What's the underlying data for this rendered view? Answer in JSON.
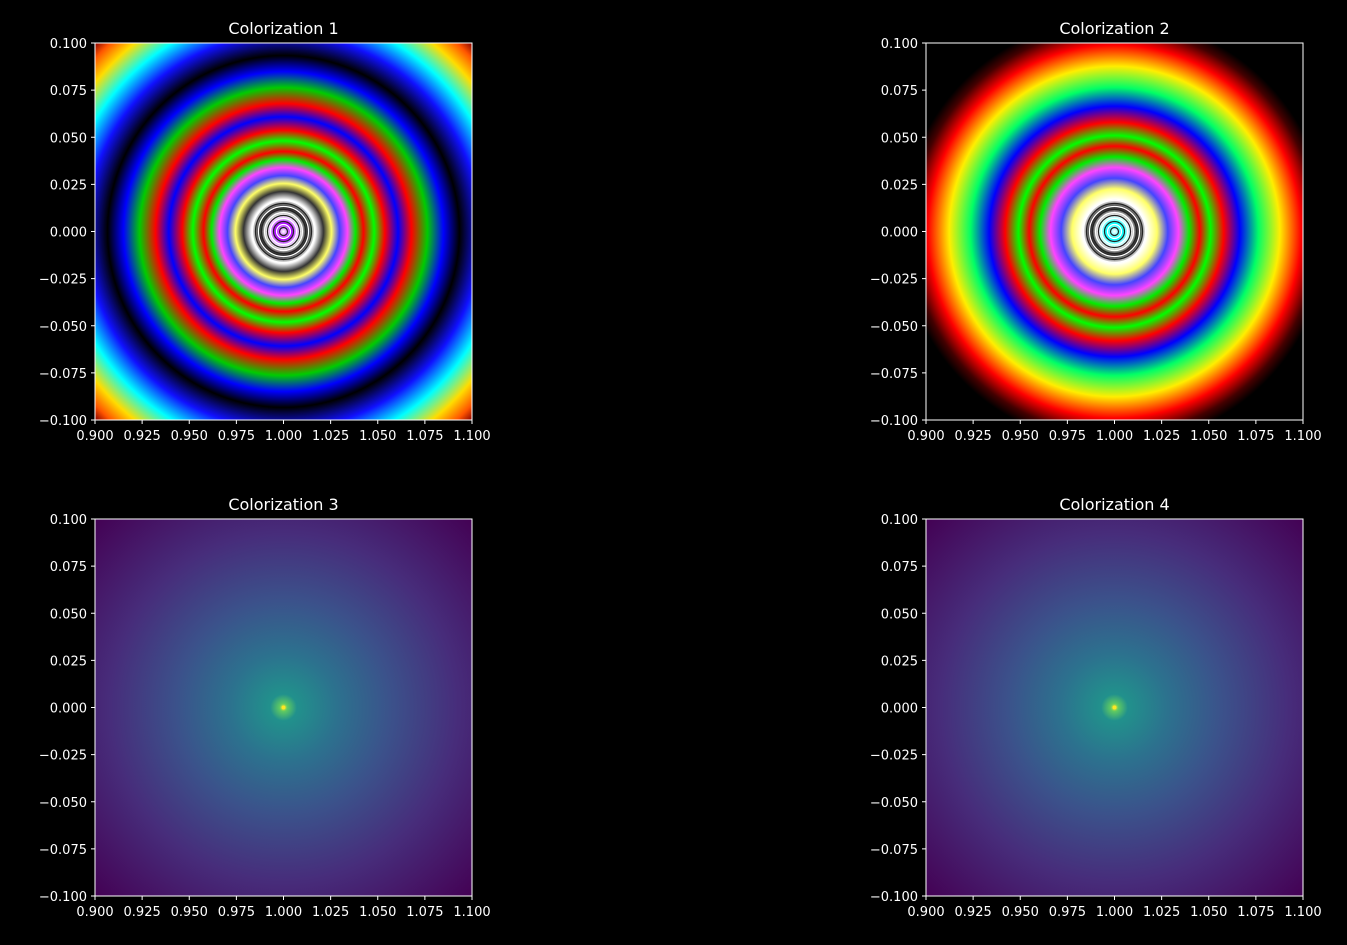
{
  "figure": {
    "background": "#000000",
    "foreground": "#ffffff"
  },
  "chart_data": [
    {
      "type": "heatmap",
      "title": "Colorization 1",
      "colormap": "banded-rainbow",
      "xlim": [
        0.9,
        1.1
      ],
      "ylim": [
        -0.1,
        0.1
      ],
      "x_ticks": [
        "0.900",
        "0.925",
        "0.950",
        "0.975",
        "1.000",
        "1.025",
        "1.050",
        "1.075",
        "1.100"
      ],
      "y_ticks": [
        "0.100",
        "0.075",
        "0.050",
        "0.025",
        "0.000",
        "−0.025",
        "−0.050",
        "−0.075",
        "−0.100"
      ],
      "center": [
        1.0,
        0.0
      ],
      "grid": false
    },
    {
      "type": "heatmap",
      "title": "Colorization 2",
      "colormap": "banded-rainbow-black-background",
      "xlim": [
        0.9,
        1.1
      ],
      "ylim": [
        -0.1,
        0.1
      ],
      "x_ticks": [
        "0.900",
        "0.925",
        "0.950",
        "0.975",
        "1.000",
        "1.025",
        "1.050",
        "1.075",
        "1.100"
      ],
      "y_ticks": [
        "0.100",
        "0.075",
        "0.050",
        "0.025",
        "0.000",
        "−0.025",
        "−0.050",
        "−0.075",
        "−0.100"
      ],
      "center": [
        1.0,
        0.0
      ],
      "grid": false
    },
    {
      "type": "heatmap",
      "title": "Colorization 3",
      "colormap": "viridis",
      "xlim": [
        0.9,
        1.1
      ],
      "ylim": [
        -0.1,
        0.1
      ],
      "x_ticks": [
        "0.900",
        "0.925",
        "0.950",
        "0.975",
        "1.000",
        "1.025",
        "1.050",
        "1.075",
        "1.100"
      ],
      "y_ticks": [
        "0.100",
        "0.075",
        "0.050",
        "0.025",
        "0.000",
        "−0.025",
        "−0.050",
        "−0.075",
        "−0.100"
      ],
      "center": [
        1.0,
        0.0
      ],
      "grid": false
    },
    {
      "type": "heatmap",
      "title": "Colorization 4",
      "colormap": "viridis",
      "xlim": [
        0.9,
        1.1
      ],
      "ylim": [
        -0.1,
        0.1
      ],
      "x_ticks": [
        "0.900",
        "0.925",
        "0.950",
        "0.975",
        "1.000",
        "1.025",
        "1.050",
        "1.075",
        "1.100"
      ],
      "y_ticks": [
        "0.100",
        "0.075",
        "0.050",
        "0.025",
        "0.000",
        "−0.025",
        "−0.050",
        "−0.075",
        "−0.100"
      ],
      "center": [
        1.0,
        0.0
      ],
      "grid": false
    }
  ]
}
